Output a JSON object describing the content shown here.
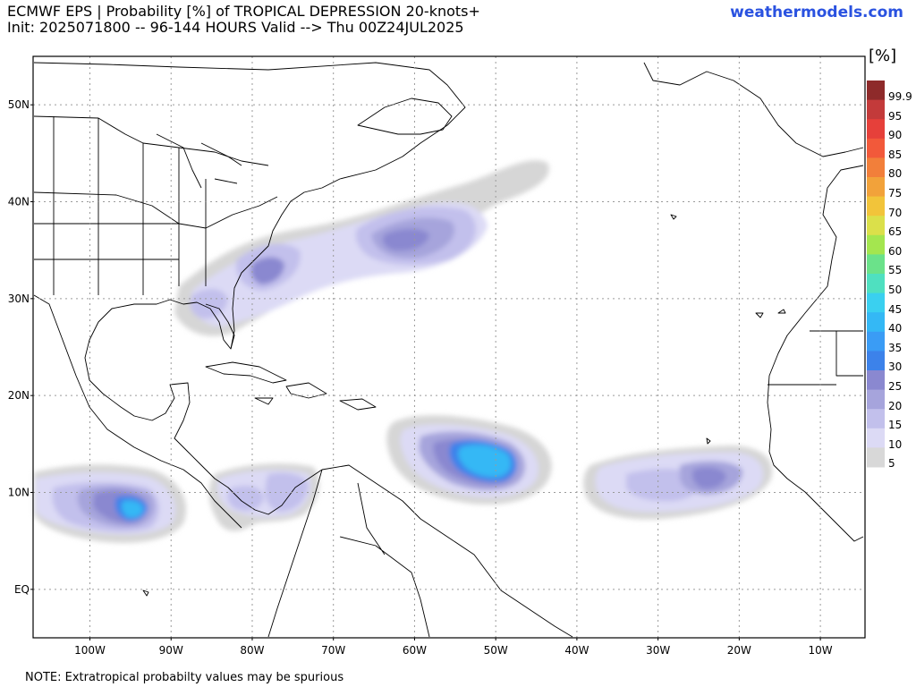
{
  "header": {
    "title_line1": "ECMWF EPS | Probability [%] of TROPICAL DEPRESSION 20-knots+",
    "title_line2": "Init: 2025071800 -- 96-144 HOURS Valid --> Thu 00Z24JUL2025",
    "brand": "weathermodels.com"
  },
  "map": {
    "lat_labels": [
      "50N",
      "40N",
      "30N",
      "20N",
      "10N",
      "EQ"
    ],
    "lon_labels": [
      "100W",
      "90W",
      "80W",
      "70W",
      "60W",
      "50W",
      "40W",
      "30W",
      "20W",
      "10W"
    ],
    "gridlines": "dotted",
    "coastline_color": "#000000"
  },
  "colorbar": {
    "unit": "[%]",
    "ticks": [
      "99.9",
      "95",
      "90",
      "85",
      "80",
      "75",
      "70",
      "65",
      "60",
      "55",
      "50",
      "45",
      "40",
      "35",
      "30",
      "25",
      "20",
      "15",
      "10",
      "5"
    ],
    "colors": [
      "#8e2a2a",
      "#c33a3a",
      "#e6403a",
      "#f2593a",
      "#f27f3a",
      "#f2a23a",
      "#f2c43a",
      "#dbe04a",
      "#a4e64f",
      "#6be28a",
      "#4fe0c0",
      "#3ad0f0",
      "#34b8f5",
      "#3a9cf5",
      "#3c82ea",
      "#8a88d0",
      "#a6a4dc",
      "#c2c0ec",
      "#dcdaf5",
      "#d8d8d8"
    ]
  },
  "footer": {
    "note": "NOTE: Extratropical probabilty values may be spurious"
  }
}
